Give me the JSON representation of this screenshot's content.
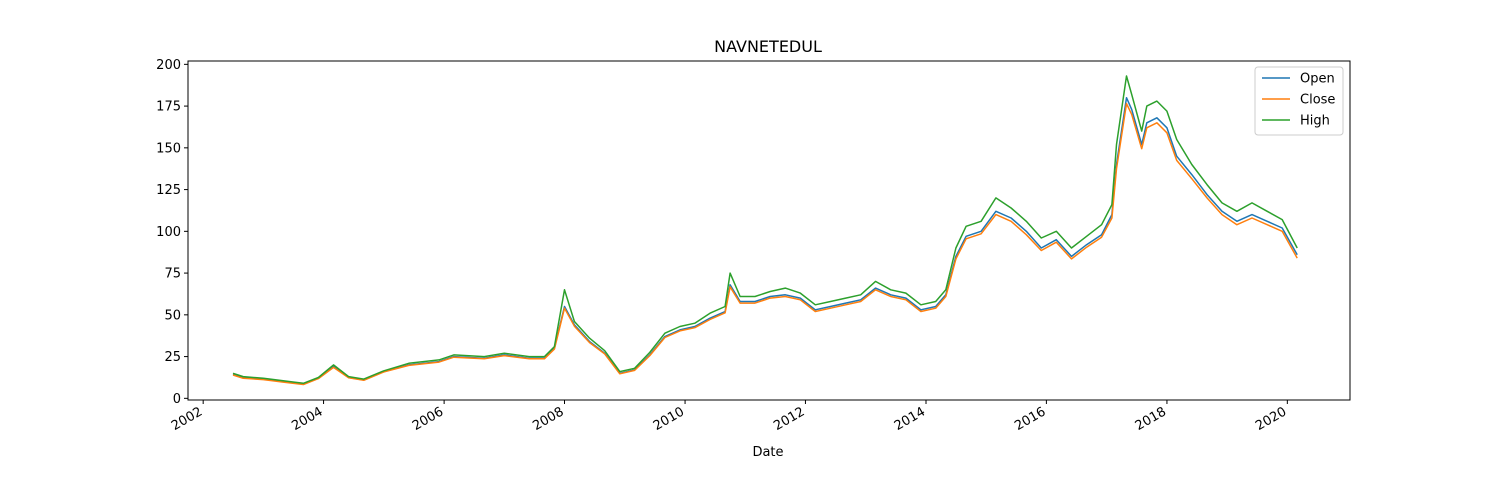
{
  "chart_data": {
    "type": "line",
    "title": "NAVNETEDUL",
    "xlabel": "Date",
    "ylabel": "",
    "xlim": [
      "2001-10-01",
      "2021-01-15"
    ],
    "ylim": [
      -1,
      202
    ],
    "x_ticks": [
      "2002",
      "2004",
      "2006",
      "2008",
      "2010",
      "2012",
      "2014",
      "2016",
      "2018",
      "2020"
    ],
    "y_ticks": [
      0,
      25,
      50,
      75,
      100,
      125,
      150,
      175,
      200
    ],
    "grid": false,
    "legend_position": "top-right",
    "x": [
      "2002-07",
      "2002-09",
      "2003-01",
      "2003-05",
      "2003-09",
      "2003-12",
      "2004-03",
      "2004-06",
      "2004-09",
      "2005-01",
      "2005-06",
      "2005-12",
      "2006-03",
      "2006-09",
      "2007-01",
      "2007-06",
      "2007-09",
      "2007-11",
      "2008-01",
      "2008-03",
      "2008-06",
      "2008-09",
      "2008-12",
      "2009-03",
      "2009-06",
      "2009-09",
      "2009-12",
      "2010-03",
      "2010-06",
      "2010-09",
      "2010-10",
      "2010-12",
      "2011-03",
      "2011-06",
      "2011-09",
      "2011-12",
      "2012-03",
      "2012-06",
      "2012-09",
      "2012-12",
      "2013-03",
      "2013-06",
      "2013-09",
      "2013-12",
      "2014-03",
      "2014-05",
      "2014-07",
      "2014-09",
      "2014-12",
      "2015-03",
      "2015-06",
      "2015-09",
      "2015-12",
      "2016-03",
      "2016-06",
      "2016-09",
      "2016-12",
      "2017-02",
      "2017-03",
      "2017-05",
      "2017-06",
      "2017-08",
      "2017-09",
      "2017-11",
      "2018-01",
      "2018-03",
      "2018-06",
      "2018-09",
      "2018-12",
      "2019-03",
      "2019-06",
      "2019-09",
      "2019-12",
      "2020-03"
    ],
    "series": [
      {
        "name": "Open",
        "color": "#1f77b4",
        "values": [
          14.5,
          12.5,
          11.5,
          10,
          8.5,
          12,
          19,
          12.5,
          11,
          16,
          20,
          22,
          25,
          24,
          26,
          24,
          24,
          30,
          55,
          44,
          34,
          27,
          15,
          17,
          26,
          37,
          41,
          43,
          48,
          52,
          68,
          58,
          58,
          61,
          62,
          60,
          53,
          55,
          57,
          59,
          66,
          62,
          60,
          53,
          55,
          62,
          85,
          97,
          100,
          112,
          108,
          100,
          90,
          95,
          85,
          92,
          98,
          110,
          140,
          180,
          173,
          152,
          165,
          168,
          162,
          145,
          134,
          122,
          112,
          106,
          110,
          106,
          102,
          86
        ]
      },
      {
        "name": "Close",
        "color": "#ff7f0e",
        "values": [
          14,
          12,
          11.2,
          9.7,
          8.3,
          11.8,
          18.5,
          12.3,
          10.8,
          15.8,
          19.7,
          21.7,
          24.6,
          23.7,
          25.6,
          23.7,
          23.7,
          29.5,
          54,
          43.2,
          33.4,
          26.6,
          14.7,
          16.7,
          25.6,
          36.4,
          40.4,
          42.3,
          47.2,
          51.2,
          66.8,
          57,
          57,
          60,
          61,
          59,
          52,
          54,
          56,
          58,
          65,
          61,
          59,
          52,
          54,
          61,
          83.5,
          95.5,
          98.5,
          110,
          106,
          98,
          88.5,
          93.5,
          83.5,
          90.5,
          96.5,
          108,
          137.5,
          176.5,
          170,
          149.5,
          162,
          165,
          159,
          142.5,
          131.5,
          120,
          110,
          104,
          108,
          104,
          100,
          84
        ]
      },
      {
        "name": "High",
        "color": "#2ca02c",
        "values": [
          15,
          13,
          12,
          10.5,
          9,
          12.5,
          20,
          13,
          11.5,
          16.5,
          21,
          23,
          26,
          25,
          27,
          25,
          25,
          31,
          65,
          46,
          36,
          28.5,
          16,
          18,
          27.5,
          39,
          43,
          45,
          51,
          55,
          75,
          61,
          61,
          64,
          66,
          63,
          56,
          58,
          60,
          62,
          70,
          65,
          63,
          56,
          58,
          65,
          90,
          103,
          106,
          120,
          114,
          106,
          96,
          100,
          90,
          97,
          104,
          116,
          152,
          193,
          182,
          160,
          175,
          178,
          172,
          155,
          140,
          128,
          117,
          112,
          117,
          112,
          107,
          90
        ]
      }
    ]
  }
}
